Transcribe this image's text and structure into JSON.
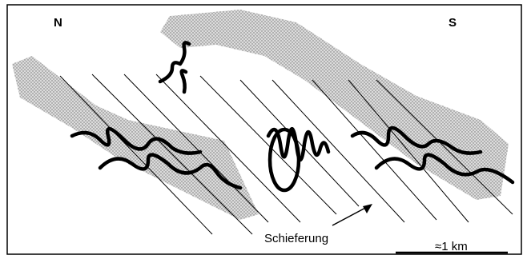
{
  "figure": {
    "labels": {
      "north": "N",
      "south": "S",
      "foliation": "Schieferung",
      "scale": "≈1 km"
    }
  },
  "colors": {
    "line": "#000000",
    "shading": "#a9a9a9",
    "background": "#ffffff"
  }
}
